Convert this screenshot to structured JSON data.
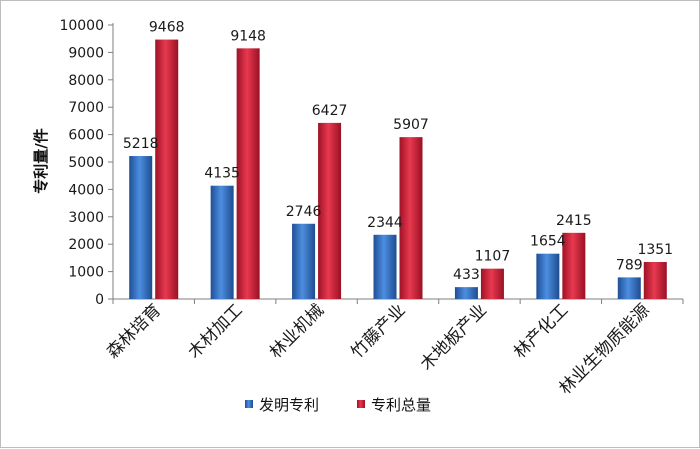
{
  "chart_data": {
    "type": "bar",
    "ylabel": "专利量/件",
    "xlabel": "",
    "ylim": [
      0,
      10000
    ],
    "yticks": [
      0,
      1000,
      2000,
      3000,
      4000,
      5000,
      6000,
      7000,
      8000,
      9000,
      10000
    ],
    "grid": false,
    "legend_position": "bottom",
    "categories": [
      "森林培育",
      "木材加工",
      "林业机械",
      "竹藤产业",
      "木地板产业",
      "林产化工",
      "林业生物质能源"
    ],
    "series": [
      {
        "name": "发明专利",
        "color": "#2e6fc2",
        "values": [
          5218,
          4135,
          2746,
          2344,
          433,
          1654,
          789
        ]
      },
      {
        "name": "专利总量",
        "color": "#d4243f",
        "values": [
          9468,
          9148,
          6427,
          5907,
          1107,
          2415,
          1351
        ]
      }
    ]
  }
}
